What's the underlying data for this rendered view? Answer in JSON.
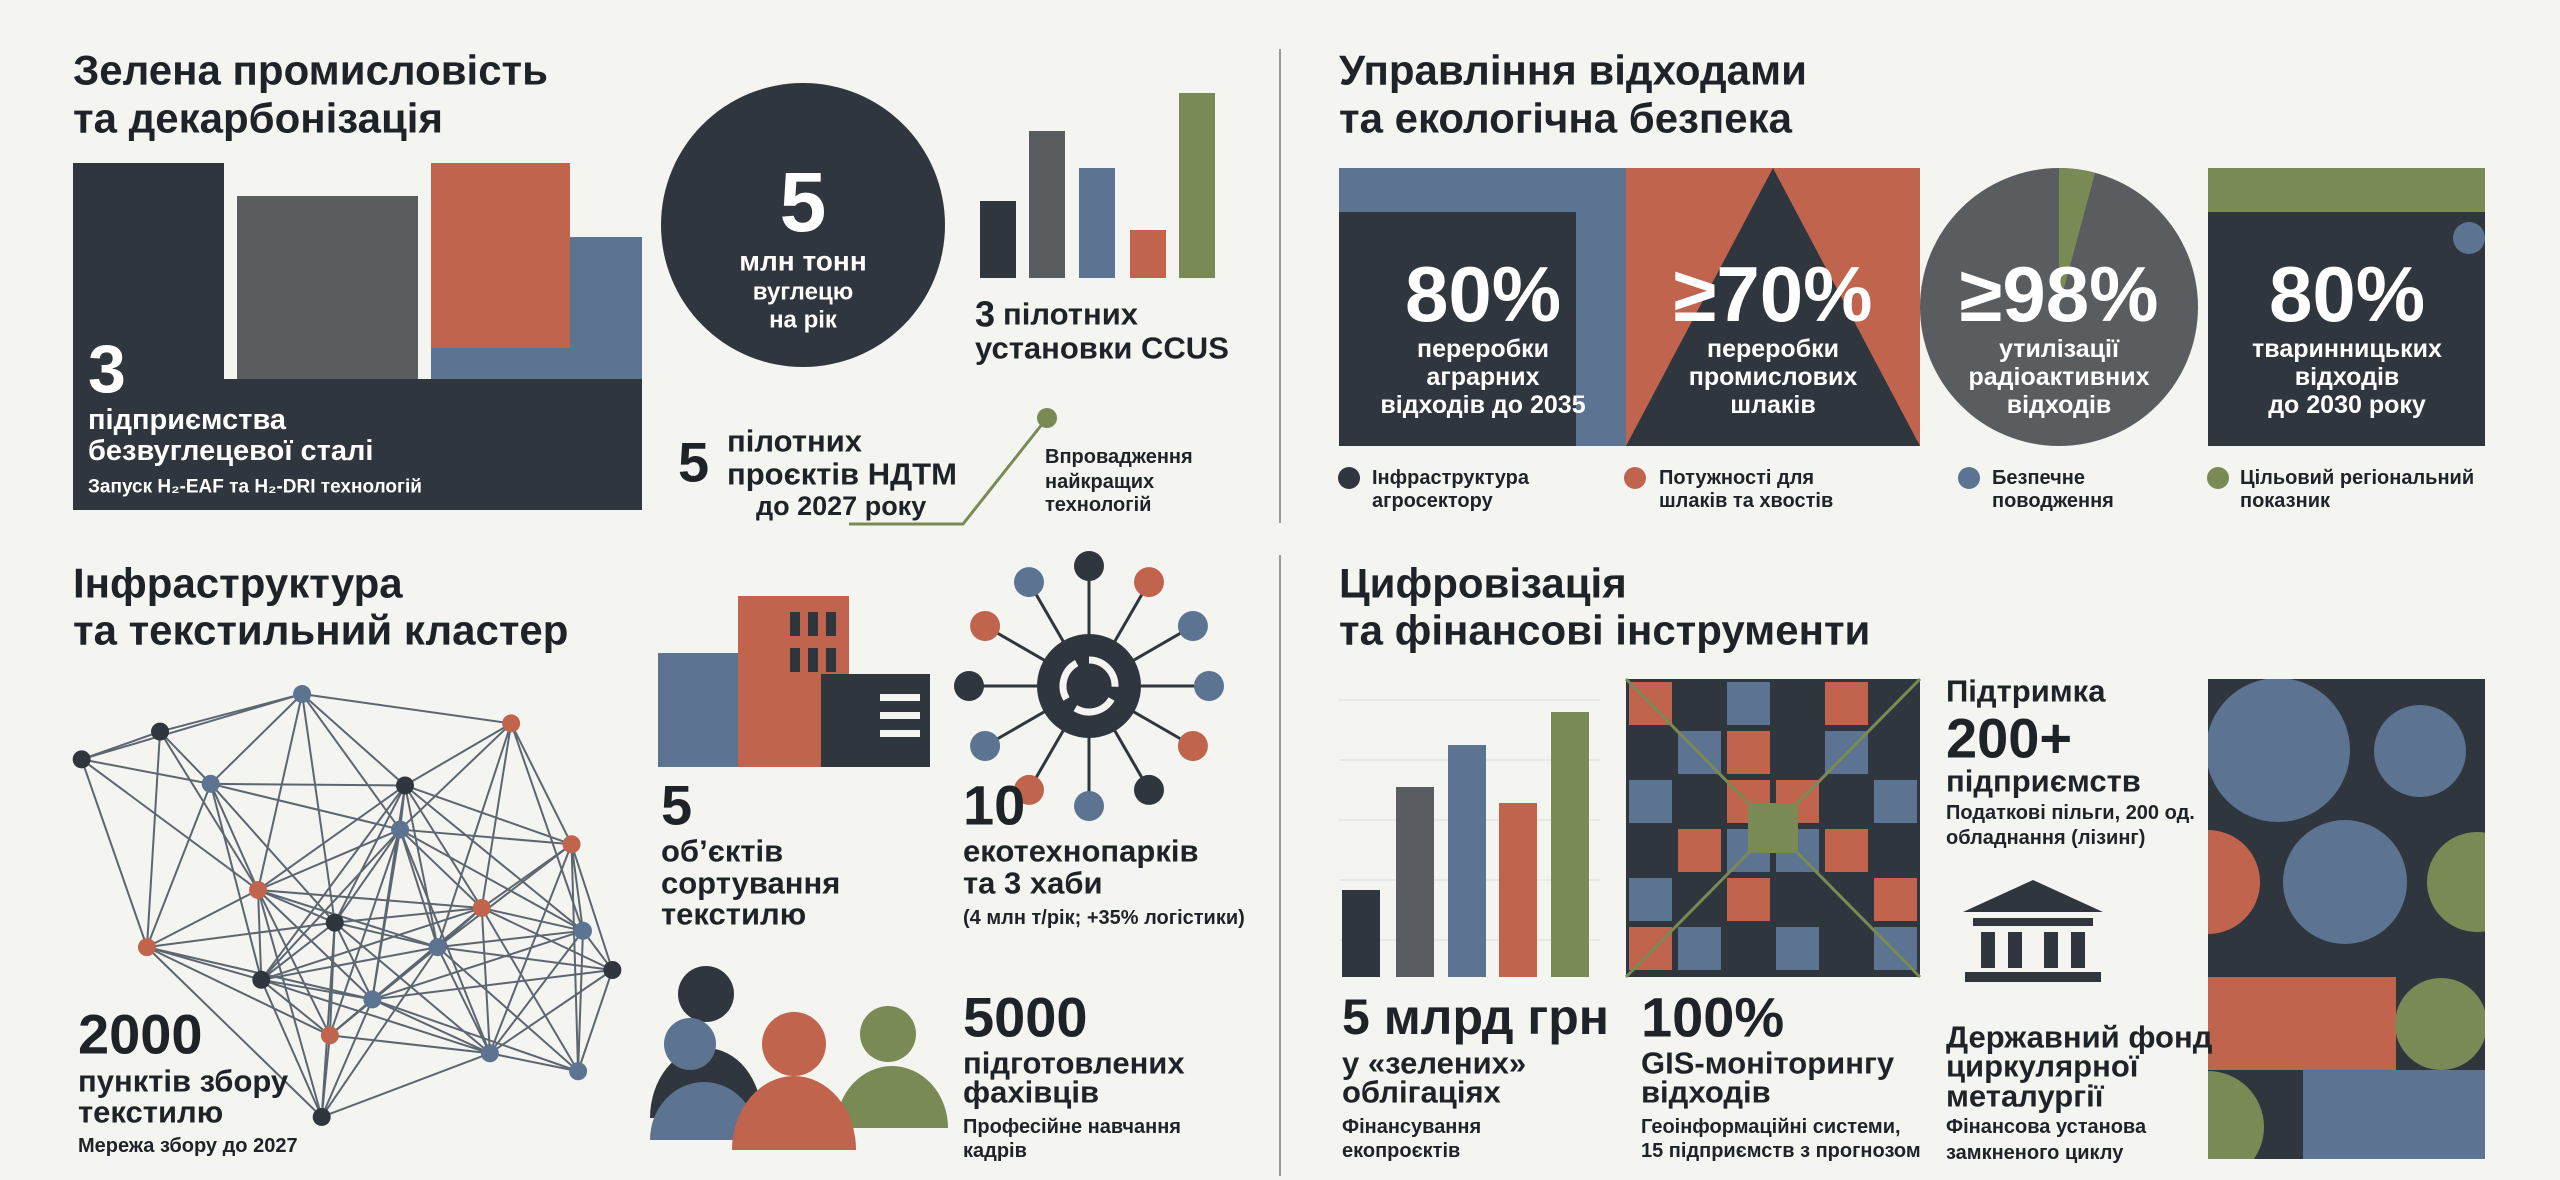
{
  "green_industry": {
    "title": [
      "Зелена промисловість",
      "та декарбонізація"
    ],
    "steel": {
      "value": "3",
      "label": [
        "підприємства",
        "безвуглецевої сталі"
      ],
      "note": "Запуск H₂-EAF та H₂-DRI технологій"
    },
    "carbon": {
      "value": "5",
      "label": [
        "млн тонн",
        "вуглецю",
        "на рік"
      ]
    },
    "ccus": {
      "value": "3",
      "label": [
        "пілотних",
        "установки CCUS"
      ]
    },
    "ndtm": {
      "value": "5",
      "label": [
        "пілотних",
        "проєктів НДТМ",
        "до 2027 року"
      ]
    },
    "annotation": [
      "Впровадження",
      "найкращих",
      "технологій"
    ]
  },
  "waste": {
    "title": [
      "Управління відходами",
      "та екологічна безпека"
    ],
    "cards": [
      {
        "value": "80%",
        "label": [
          "переробки",
          "аграрних",
          "відходів до 2035"
        ]
      },
      {
        "value": "≥70%",
        "label": [
          "переробки",
          "промислових",
          "шлаків"
        ]
      },
      {
        "value": "≥98%",
        "label": [
          "утилізації",
          "радіоактивних",
          "відходів"
        ]
      },
      {
        "value": "80%",
        "label": [
          "тваринницьких",
          "відходів",
          "до 2030 року"
        ]
      }
    ],
    "legend": [
      [
        "Інфраструктура",
        "агросектору"
      ],
      [
        "Потужності для",
        "шлаків та хвостів"
      ],
      [
        "Безпечне",
        "поводження"
      ],
      [
        "Цільовий регіональний",
        "показник"
      ]
    ]
  },
  "textile": {
    "title": [
      "Інфраструктура",
      "та текстильний кластер"
    ],
    "collection": {
      "value": "2000",
      "label": [
        "пунктів збору",
        "текстилю"
      ],
      "note": "Мережа збору до 2027"
    },
    "sorting": {
      "value": "5",
      "label": [
        "об’єктів",
        "сортування",
        "текстилю"
      ]
    },
    "ecoparks": {
      "value": "10",
      "label": [
        "екотехнопарків",
        "та 3 хаби"
      ],
      "note": "(4 млн т/рік; +35% логістики)"
    },
    "specialists": {
      "value": "5000",
      "label": [
        "підготовлених",
        "фахівців"
      ],
      "note": [
        "Професійне навчання",
        "кадрів"
      ]
    }
  },
  "digital": {
    "title": [
      "Цифровізація",
      "та фінансові інструменти"
    ],
    "bonds": {
      "value": "5 млрд грн",
      "label": [
        "у «зелених»",
        "облігаціях"
      ],
      "note": [
        "Фінансування",
        "екопроєктів"
      ]
    },
    "gis": {
      "value": "100%",
      "label": [
        "GIS-моніторингу",
        "відходів"
      ],
      "note": [
        "Геоінформаційні системи,",
        "15 підприємств з прогнозом"
      ]
    },
    "support": {
      "heading": "Підтримка",
      "value": "200+",
      "label": "підприємств",
      "note": [
        "Податкові пільги, 200 од.",
        "обладнання (лізинг)"
      ]
    },
    "fund": {
      "label": [
        "Державний фонд",
        "циркулярної",
        "металургії"
      ],
      "note": [
        "Фінансова установа",
        "замкненого циклу"
      ]
    }
  }
}
